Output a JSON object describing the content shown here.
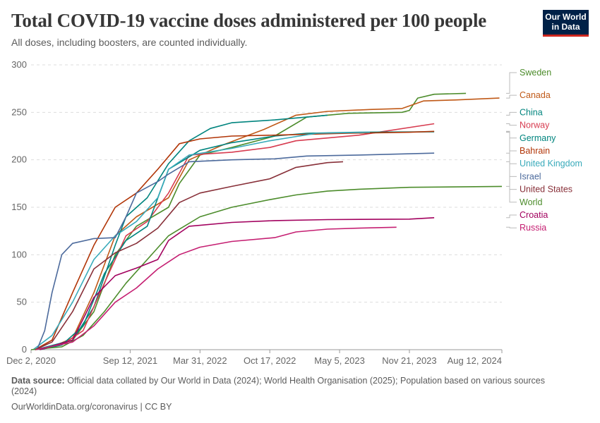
{
  "header": {
    "title": "Total COVID-19 vaccine doses administered per 100 people",
    "subtitle": "All doses, including boosters, are counted individually.",
    "logo_line1": "Our World",
    "logo_line2": "in Data"
  },
  "footer": {
    "source_label": "Data source:",
    "source_text": "Official data collated by Our World in Data (2024); World Health Organisation (2025); Population based on various sources (2024)",
    "site": "OurWorldinData.org/coronavirus",
    "separator": " | ",
    "license": "CC BY"
  },
  "chart_data": {
    "type": "line",
    "title": "Total COVID-19 vaccine doses administered per 100 people",
    "subtitle": "All doses, including boosters, are counted individually.",
    "xlabel": "",
    "ylabel": "",
    "ylim": [
      0,
      300
    ],
    "yticks": [
      0,
      50,
      100,
      150,
      200,
      250,
      300
    ],
    "xlim": [
      "2020-12-02",
      "2024-08-12"
    ],
    "xticks": [
      "2020-12-02",
      "2021-09-12",
      "2022-03-31",
      "2022-10-17",
      "2023-05-05",
      "2023-11-21",
      "2024-08-12"
    ],
    "xtick_labels": [
      "Dec 2, 2020",
      "Sep 12, 2021",
      "Mar 31, 2022",
      "Oct 17, 2022",
      "May 5, 2023",
      "Nov 21, 2023",
      "Aug 12, 2024"
    ],
    "grid": "horizontal dashed",
    "legend_placement": "right, labels at line ends",
    "series": [
      {
        "name": "Sweden",
        "color": "#4c8c2b",
        "points": [
          [
            "2020-12-27",
            0
          ],
          [
            "2021-01-31",
            3
          ],
          [
            "2021-03-31",
            10
          ],
          [
            "2021-05-31",
            40
          ],
          [
            "2021-07-31",
            100
          ],
          [
            "2021-09-30",
            130
          ],
          [
            "2021-12-31",
            150
          ],
          [
            "2022-01-31",
            175
          ],
          [
            "2022-03-31",
            205
          ],
          [
            "2022-06-30",
            213
          ],
          [
            "2022-10-31",
            225
          ],
          [
            "2023-01-31",
            245
          ],
          [
            "2023-05-31",
            249
          ],
          [
            "2023-10-31",
            250
          ],
          [
            "2023-11-21",
            252
          ],
          [
            "2023-12-15",
            265
          ],
          [
            "2024-01-31",
            269
          ],
          [
            "2024-05-01",
            270
          ]
        ]
      },
      {
        "name": "Canada",
        "color": "#c05917",
        "points": [
          [
            "2020-12-14",
            0
          ],
          [
            "2021-01-31",
            3
          ],
          [
            "2021-03-31",
            12
          ],
          [
            "2021-05-31",
            60
          ],
          [
            "2021-07-31",
            120
          ],
          [
            "2021-09-30",
            140
          ],
          [
            "2021-12-31",
            160
          ],
          [
            "2022-02-28",
            200
          ],
          [
            "2022-05-31",
            215
          ],
          [
            "2022-09-30",
            232
          ],
          [
            "2022-12-31",
            247
          ],
          [
            "2023-03-31",
            251
          ],
          [
            "2023-07-31",
            253
          ],
          [
            "2023-10-31",
            254
          ],
          [
            "2023-12-31",
            262
          ],
          [
            "2024-03-31",
            263
          ],
          [
            "2024-08-05",
            265
          ]
        ]
      },
      {
        "name": "China",
        "color": "#00847e",
        "points": [
          [
            "2020-12-15",
            0
          ],
          [
            "2021-03-31",
            10
          ],
          [
            "2021-05-31",
            45
          ],
          [
            "2021-07-31",
            110
          ],
          [
            "2021-08-31",
            140
          ],
          [
            "2021-10-31",
            160
          ],
          [
            "2021-12-31",
            196
          ],
          [
            "2022-02-28",
            220
          ],
          [
            "2022-04-30",
            233
          ],
          [
            "2022-06-30",
            239
          ],
          [
            "2022-10-31",
            242
          ],
          [
            "2023-03-31",
            247
          ]
        ]
      },
      {
        "name": "Norway",
        "color": "#d73c50",
        "points": [
          [
            "2020-12-27",
            0
          ],
          [
            "2021-02-28",
            5
          ],
          [
            "2021-04-30",
            20
          ],
          [
            "2021-06-30",
            70
          ],
          [
            "2021-08-31",
            120
          ],
          [
            "2021-10-31",
            135
          ],
          [
            "2021-12-31",
            165
          ],
          [
            "2022-02-28",
            205
          ],
          [
            "2022-06-30",
            208
          ],
          [
            "2022-10-17",
            213
          ],
          [
            "2022-12-31",
            220
          ],
          [
            "2023-06-30",
            226
          ],
          [
            "2024-01-31",
            238
          ]
        ]
      },
      {
        "name": "Germany",
        "color": "#00847e",
        "points": [
          [
            "2020-12-27",
            0
          ],
          [
            "2021-02-28",
            5
          ],
          [
            "2021-04-30",
            25
          ],
          [
            "2021-06-30",
            80
          ],
          [
            "2021-08-31",
            115
          ],
          [
            "2021-10-31",
            130
          ],
          [
            "2021-12-31",
            190
          ],
          [
            "2022-03-31",
            210
          ],
          [
            "2022-06-30",
            218
          ],
          [
            "2022-10-31",
            225
          ],
          [
            "2023-01-31",
            228
          ],
          [
            "2023-06-30",
            229
          ],
          [
            "2024-01-31",
            229.5
          ]
        ]
      },
      {
        "name": "Bahrain",
        "color": "#b13507",
        "points": [
          [
            "2020-12-13",
            0
          ],
          [
            "2021-01-31",
            10
          ],
          [
            "2021-03-31",
            60
          ],
          [
            "2021-05-31",
            110
          ],
          [
            "2021-07-31",
            150
          ],
          [
            "2021-09-30",
            165
          ],
          [
            "2021-11-30",
            190
          ],
          [
            "2022-01-31",
            217
          ],
          [
            "2022-03-31",
            222
          ],
          [
            "2022-06-30",
            225
          ],
          [
            "2022-10-31",
            226
          ],
          [
            "2023-05-31",
            228
          ],
          [
            "2023-11-21",
            229
          ],
          [
            "2024-01-31",
            230
          ]
        ]
      },
      {
        "name": "United Kingdom",
        "color": "#38aaba",
        "points": [
          [
            "2020-12-08",
            0
          ],
          [
            "2021-01-31",
            15
          ],
          [
            "2021-03-31",
            50
          ],
          [
            "2021-05-31",
            95
          ],
          [
            "2021-07-31",
            120
          ],
          [
            "2021-09-30",
            135
          ],
          [
            "2021-11-30",
            160
          ],
          [
            "2021-12-31",
            190
          ],
          [
            "2022-02-28",
            205
          ],
          [
            "2022-06-30",
            212
          ],
          [
            "2022-10-17",
            220
          ],
          [
            "2023-02-28",
            228
          ],
          [
            "2023-07-31",
            229
          ]
        ]
      },
      {
        "name": "Israel",
        "color": "#4c6a9c",
        "points": [
          [
            "2020-12-19",
            0
          ],
          [
            "2021-01-10",
            20
          ],
          [
            "2021-01-31",
            60
          ],
          [
            "2021-02-28",
            100
          ],
          [
            "2021-03-31",
            112
          ],
          [
            "2021-05-31",
            117
          ],
          [
            "2021-07-31",
            118
          ],
          [
            "2021-08-31",
            140
          ],
          [
            "2021-09-30",
            165
          ],
          [
            "2021-11-30",
            177
          ],
          [
            "2021-12-31",
            185
          ],
          [
            "2022-02-28",
            198
          ],
          [
            "2022-06-30",
            200
          ],
          [
            "2022-10-31",
            201
          ],
          [
            "2023-01-31",
            204
          ],
          [
            "2023-06-30",
            205
          ],
          [
            "2024-01-31",
            207
          ]
        ]
      },
      {
        "name": "United States",
        "color": "#883039",
        "points": [
          [
            "2020-12-14",
            0
          ],
          [
            "2021-01-31",
            8
          ],
          [
            "2021-03-31",
            40
          ],
          [
            "2021-05-31",
            85
          ],
          [
            "2021-07-31",
            102
          ],
          [
            "2021-09-30",
            112
          ],
          [
            "2021-11-30",
            128
          ],
          [
            "2022-01-31",
            155
          ],
          [
            "2022-03-31",
            165
          ],
          [
            "2022-06-30",
            172
          ],
          [
            "2022-10-17",
            180
          ],
          [
            "2022-12-31",
            192
          ],
          [
            "2023-03-31",
            197
          ],
          [
            "2023-05-15",
            198
          ]
        ]
      },
      {
        "name": "World",
        "color": "#4c8c2b",
        "points": [
          [
            "2020-12-02",
            0
          ],
          [
            "2021-02-28",
            3
          ],
          [
            "2021-04-30",
            15
          ],
          [
            "2021-06-30",
            40
          ],
          [
            "2021-08-31",
            70
          ],
          [
            "2021-10-31",
            95
          ],
          [
            "2021-12-31",
            120
          ],
          [
            "2022-03-31",
            140
          ],
          [
            "2022-06-30",
            150
          ],
          [
            "2022-10-17",
            158
          ],
          [
            "2022-12-31",
            163
          ],
          [
            "2023-03-31",
            167
          ],
          [
            "2023-06-30",
            169
          ],
          [
            "2023-11-21",
            171
          ],
          [
            "2024-08-12",
            172
          ]
        ]
      },
      {
        "name": "Croatia",
        "color": "#a2005e",
        "points": [
          [
            "2020-12-27",
            0
          ],
          [
            "2021-03-31",
            10
          ],
          [
            "2021-05-31",
            55
          ],
          [
            "2021-07-31",
            78
          ],
          [
            "2021-09-30",
            86
          ],
          [
            "2021-11-30",
            95
          ],
          [
            "2021-12-31",
            115
          ],
          [
            "2022-02-28",
            130
          ],
          [
            "2022-06-30",
            134
          ],
          [
            "2022-10-31",
            136
          ],
          [
            "2023-03-31",
            137
          ],
          [
            "2023-11-21",
            137.5
          ],
          [
            "2024-01-31",
            139
          ]
        ]
      },
      {
        "name": "Russia",
        "color": "#c51f72",
        "points": [
          [
            "2020-12-15",
            0
          ],
          [
            "2021-03-31",
            8
          ],
          [
            "2021-05-31",
            25
          ],
          [
            "2021-07-31",
            50
          ],
          [
            "2021-09-30",
            65
          ],
          [
            "2021-11-30",
            85
          ],
          [
            "2022-01-31",
            100
          ],
          [
            "2022-03-31",
            108
          ],
          [
            "2022-06-30",
            114
          ],
          [
            "2022-10-31",
            118
          ],
          [
            "2022-12-31",
            124
          ],
          [
            "2023-03-31",
            127
          ],
          [
            "2023-06-30",
            128
          ],
          [
            "2023-10-15",
            129
          ]
        ]
      }
    ]
  }
}
